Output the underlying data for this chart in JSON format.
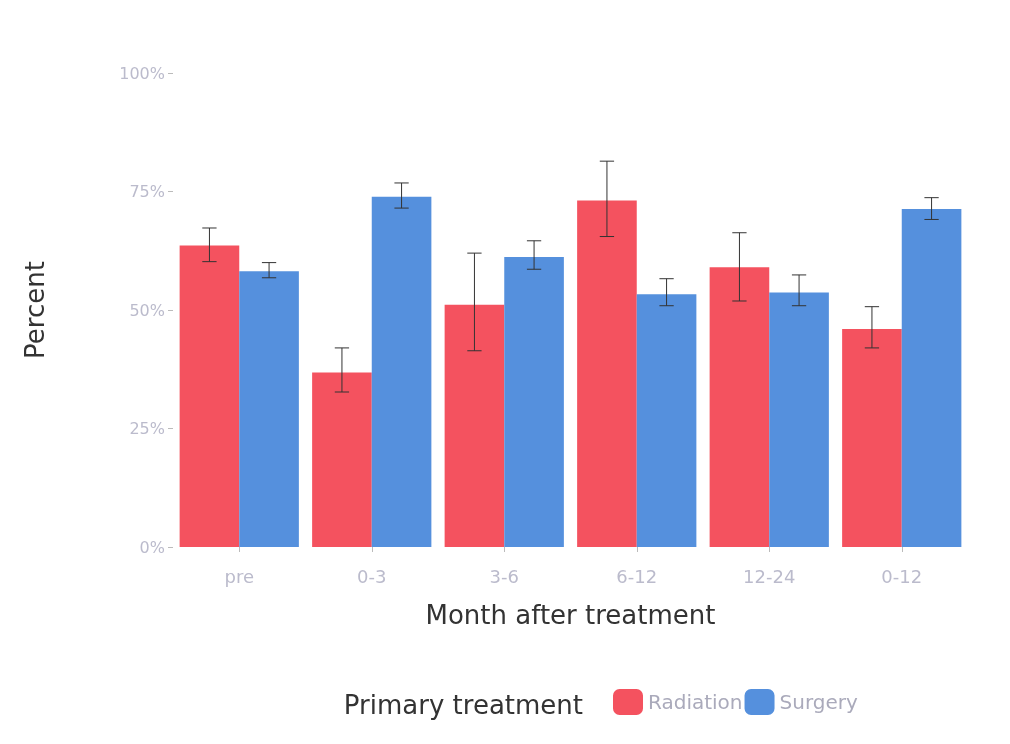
{
  "chart_data": {
    "type": "bar",
    "xlabel": "Month after treatment",
    "ylabel": "Percent",
    "legend_title": "Primary treatment",
    "categories": [
      "pre",
      "0-3",
      "3-6",
      "6-12",
      "12-24",
      "0-12"
    ],
    "ylim": [
      0,
      100
    ],
    "yticks": [
      {
        "value": 0,
        "label": "0%"
      },
      {
        "value": 25,
        "label": "25%"
      },
      {
        "value": 50,
        "label": "50%"
      },
      {
        "value": 75,
        "label": "75%"
      },
      {
        "value": 100,
        "label": "100%"
      }
    ],
    "grid": false,
    "legend": "bottom",
    "series": [
      {
        "name": "Radiation",
        "color": "#f4525f",
        "values": [
          63.6,
          36.8,
          51.1,
          73.1,
          59,
          46
        ],
        "errors": [
          [
            60.2,
            67.3
          ],
          [
            32.7,
            42
          ],
          [
            41.4,
            62
          ],
          [
            65.5,
            81.4
          ],
          [
            51.9,
            66.3
          ],
          [
            42,
            50.7
          ]
        ]
      },
      {
        "name": "Surgery",
        "color": "#5590dd",
        "values": [
          58.2,
          73.9,
          61.2,
          53.3,
          53.7,
          71.3
        ],
        "errors": [
          [
            56.8,
            60
          ],
          [
            71.5,
            76.8
          ],
          [
            58.6,
            64.6
          ],
          [
            50.9,
            56.6
          ],
          [
            50.9,
            57.4
          ],
          [
            69.1,
            73.7
          ]
        ]
      }
    ]
  }
}
